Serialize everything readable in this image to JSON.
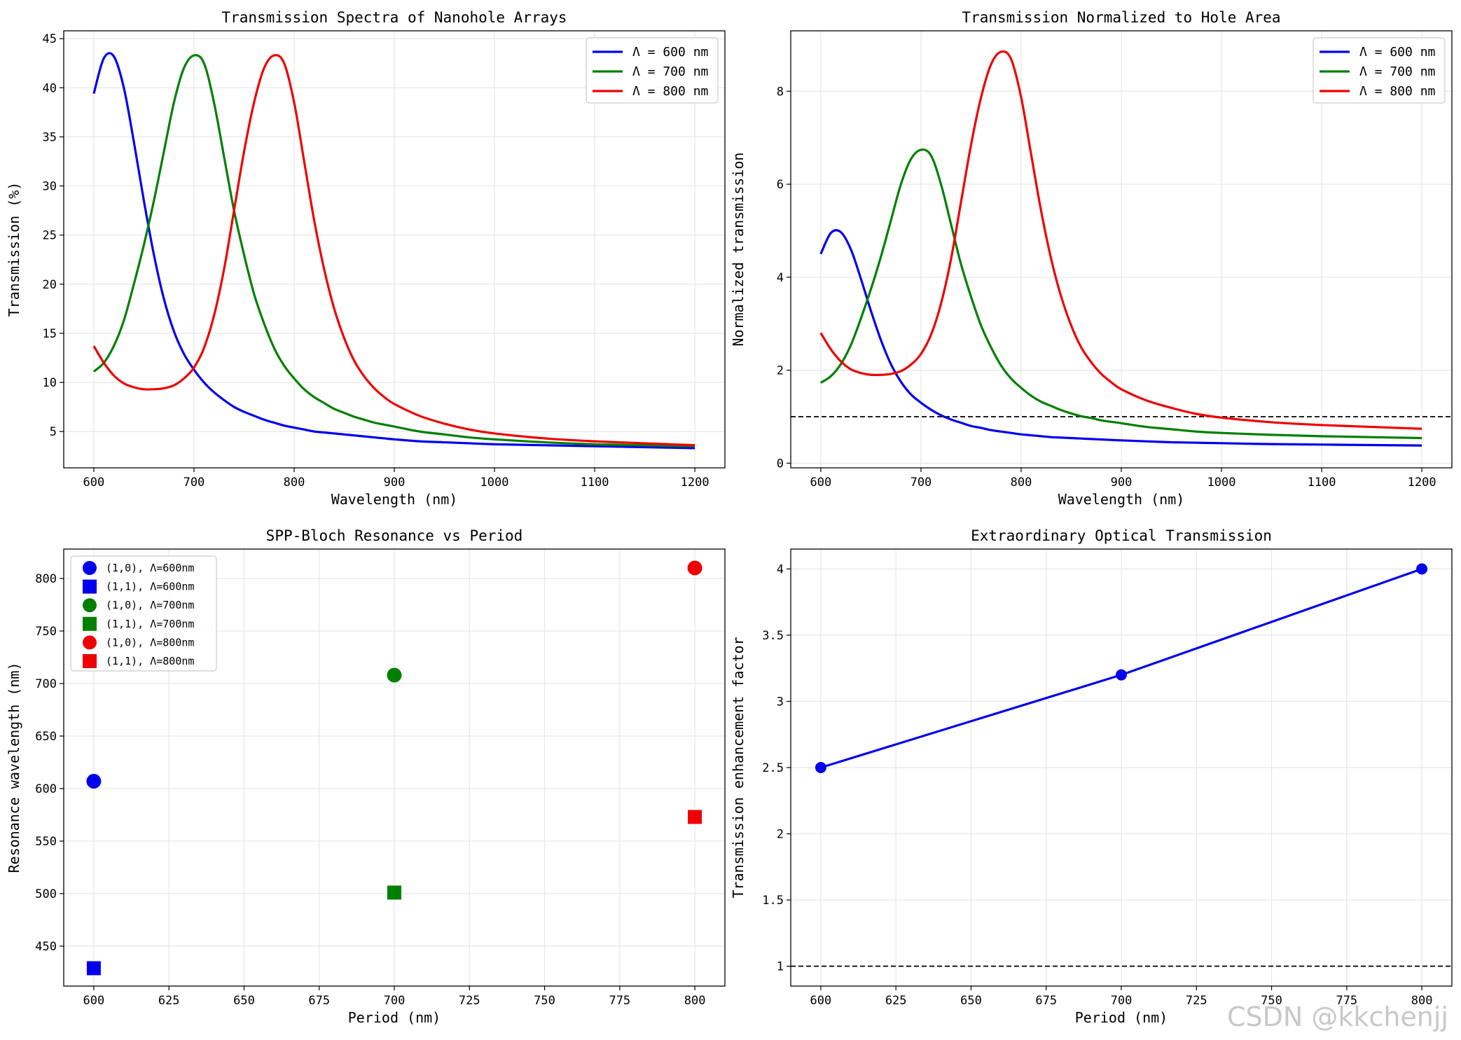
{
  "figure": {
    "watermark": "CSDN @kkchenjj"
  },
  "chart_data": [
    {
      "type": "line",
      "title": "Transmission Spectra of Nanohole Arrays",
      "xlabel": "Wavelength (nm)",
      "ylabel": "Transmission (%)",
      "xlim": [
        570,
        1230
      ],
      "ylim": [
        1.3,
        45.8
      ],
      "xticks": [
        600,
        700,
        800,
        900,
        1000,
        1100,
        1200
      ],
      "yticks": [
        5,
        10,
        15,
        20,
        25,
        30,
        35,
        40,
        45
      ],
      "grid": true,
      "legend": "top-right",
      "x": [
        600,
        610,
        620,
        630,
        640,
        650,
        660,
        670,
        680,
        690,
        700,
        710,
        720,
        730,
        740,
        750,
        760,
        770,
        780,
        790,
        800,
        810,
        820,
        830,
        840,
        850,
        860,
        870,
        880,
        890,
        900,
        925,
        950,
        975,
        1000,
        1050,
        1100,
        1150,
        1200
      ],
      "series": [
        {
          "name": "Λ = 600 nm",
          "color": "#0000ee",
          "values": [
            39.4,
            43.0,
            43.2,
            40.0,
            34.5,
            28.5,
            23.0,
            18.5,
            15.2,
            12.9,
            11.3,
            10.0,
            9.0,
            8.2,
            7.5,
            7.0,
            6.6,
            6.2,
            5.9,
            5.6,
            5.4,
            5.2,
            5.0,
            4.9,
            4.8,
            4.7,
            4.6,
            4.5,
            4.4,
            4.3,
            4.2,
            4.0,
            3.9,
            3.8,
            3.7,
            3.6,
            3.5,
            3.4,
            3.3
          ]
        },
        {
          "name": "Λ = 700 nm",
          "color": "#008000",
          "values": [
            11.1,
            12.0,
            13.7,
            16.3,
            20.0,
            24.0,
            28.5,
            33.5,
            38.5,
            42.0,
            43.3,
            42.5,
            38.5,
            33.0,
            27.5,
            23.0,
            19.0,
            16.0,
            13.5,
            11.7,
            10.4,
            9.3,
            8.5,
            7.9,
            7.3,
            6.9,
            6.5,
            6.2,
            5.9,
            5.7,
            5.5,
            5.0,
            4.7,
            4.4,
            4.2,
            3.9,
            3.7,
            3.6,
            3.5
          ]
        },
        {
          "name": "Λ = 800 nm",
          "color": "#ee0000",
          "values": [
            13.7,
            12.0,
            10.7,
            9.9,
            9.5,
            9.3,
            9.3,
            9.4,
            9.7,
            10.4,
            11.5,
            13.5,
            16.8,
            21.5,
            27.5,
            33.5,
            38.5,
            42.0,
            43.3,
            42.5,
            38.5,
            32.5,
            26.5,
            21.5,
            17.5,
            14.5,
            12.2,
            10.6,
            9.4,
            8.5,
            7.8,
            6.6,
            5.8,
            5.2,
            4.8,
            4.3,
            4.0,
            3.8,
            3.6
          ]
        }
      ]
    },
    {
      "type": "line",
      "title": "Transmission Normalized to Hole Area",
      "xlabel": "Wavelength (nm)",
      "ylabel": "Normalized transmission",
      "xlim": [
        570,
        1230
      ],
      "ylim": [
        -0.1,
        9.3
      ],
      "xticks": [
        600,
        700,
        800,
        900,
        1000,
        1100,
        1200
      ],
      "yticks": [
        0,
        2,
        4,
        6,
        8
      ],
      "grid": true,
      "legend": "top-right",
      "reference_line": 1.0,
      "x": [
        600,
        610,
        620,
        630,
        640,
        650,
        660,
        670,
        680,
        690,
        700,
        710,
        720,
        730,
        740,
        750,
        760,
        770,
        780,
        790,
        800,
        810,
        820,
        830,
        840,
        850,
        860,
        870,
        880,
        890,
        900,
        925,
        950,
        975,
        1000,
        1050,
        1100,
        1150,
        1200
      ],
      "series": [
        {
          "name": "Λ = 600 nm",
          "color": "#0000ee",
          "values": [
            4.5,
            4.95,
            4.97,
            4.6,
            3.97,
            3.28,
            2.65,
            2.13,
            1.75,
            1.48,
            1.3,
            1.15,
            1.03,
            0.94,
            0.87,
            0.8,
            0.76,
            0.71,
            0.68,
            0.65,
            0.62,
            0.6,
            0.58,
            0.56,
            0.55,
            0.54,
            0.53,
            0.52,
            0.51,
            0.5,
            0.49,
            0.47,
            0.45,
            0.44,
            0.43,
            0.41,
            0.4,
            0.39,
            0.38
          ]
        },
        {
          "name": "Λ = 700 nm",
          "color": "#008000",
          "values": [
            1.73,
            1.87,
            2.13,
            2.54,
            3.11,
            3.74,
            4.44,
            5.22,
            6.0,
            6.54,
            6.74,
            6.62,
            6.0,
            5.14,
            4.28,
            3.58,
            2.96,
            2.49,
            2.1,
            1.82,
            1.62,
            1.45,
            1.32,
            1.23,
            1.14,
            1.07,
            1.01,
            0.97,
            0.92,
            0.89,
            0.86,
            0.78,
            0.73,
            0.68,
            0.65,
            0.61,
            0.58,
            0.56,
            0.54
          ]
        },
        {
          "name": "Λ = 800 nm",
          "color": "#ee0000",
          "values": [
            2.8,
            2.45,
            2.19,
            2.02,
            1.94,
            1.9,
            1.9,
            1.92,
            1.98,
            2.12,
            2.35,
            2.76,
            3.43,
            4.39,
            5.62,
            6.85,
            7.87,
            8.58,
            8.85,
            8.69,
            7.87,
            6.64,
            5.42,
            4.39,
            3.58,
            2.96,
            2.49,
            2.17,
            1.92,
            1.74,
            1.59,
            1.35,
            1.19,
            1.06,
            0.98,
            0.88,
            0.82,
            0.78,
            0.74
          ]
        }
      ]
    },
    {
      "type": "scatter",
      "title": "SPP-Bloch Resonance vs Period",
      "xlabel": "Period (nm)",
      "ylabel": "Resonance wavelength (nm)",
      "xlim": [
        590,
        810
      ],
      "ylim": [
        412,
        828
      ],
      "xticks": [
        600,
        625,
        650,
        675,
        700,
        725,
        750,
        775,
        800
      ],
      "yticks": [
        450,
        500,
        550,
        600,
        650,
        700,
        750,
        800
      ],
      "grid": true,
      "legend": "top-left",
      "series": [
        {
          "name": "(1,0), Λ=600nm",
          "color": "#0000ee",
          "marker": "circle",
          "x": [
            600
          ],
          "y": [
            607
          ]
        },
        {
          "name": "(1,1), Λ=600nm",
          "color": "#0000ee",
          "marker": "square",
          "x": [
            600
          ],
          "y": [
            429
          ]
        },
        {
          "name": "(1,0), Λ=700nm",
          "color": "#008000",
          "marker": "circle",
          "x": [
            700
          ],
          "y": [
            708
          ]
        },
        {
          "name": "(1,1), Λ=700nm",
          "color": "#008000",
          "marker": "square",
          "x": [
            700
          ],
          "y": [
            501
          ]
        },
        {
          "name": "(1,0), Λ=800nm",
          "color": "#ee0000",
          "marker": "circle",
          "x": [
            800
          ],
          "y": [
            810
          ]
        },
        {
          "name": "(1,1), Λ=800nm",
          "color": "#ee0000",
          "marker": "square",
          "x": [
            800
          ],
          "y": [
            573
          ]
        }
      ]
    },
    {
      "type": "line",
      "title": "Extraordinary Optical Transmission",
      "xlabel": "Period (nm)",
      "ylabel": "Transmission enhancement factor",
      "xlim": [
        590,
        810
      ],
      "ylim": [
        0.85,
        4.15
      ],
      "xticks": [
        600,
        625,
        650,
        675,
        700,
        725,
        750,
        775,
        800
      ],
      "yticks": [
        1.0,
        1.5,
        2.0,
        2.5,
        3.0,
        3.5,
        4.0
      ],
      "grid": true,
      "reference_line": 1.0,
      "series": [
        {
          "name": "",
          "color": "#0000ee",
          "marker": "circle",
          "x": [
            600,
            700,
            800
          ],
          "y": [
            2.5,
            3.2,
            4.0
          ]
        }
      ]
    }
  ]
}
